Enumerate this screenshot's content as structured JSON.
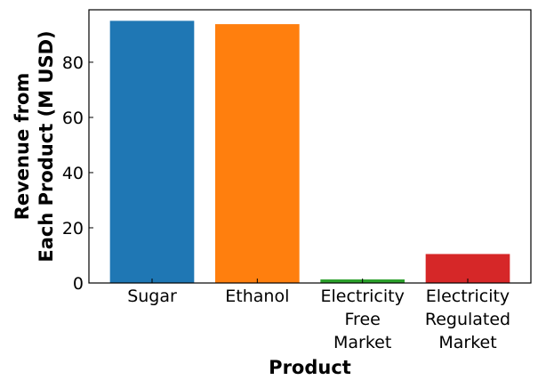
{
  "chart_data": {
    "type": "bar",
    "categories": [
      [
        "Sugar"
      ],
      [
        "Ethanol"
      ],
      [
        "Electricity",
        "Free",
        "Market"
      ],
      [
        "Electricity",
        "Regulated",
        "Market"
      ]
    ],
    "values": [
      95,
      93.8,
      1.3,
      10.5
    ],
    "colors": [
      "#1f77b4",
      "#ff7f0e",
      "#2ca02c",
      "#d62728"
    ],
    "title": "",
    "xlabel": "Product",
    "ylabel": [
      "Revenue from",
      "Each Product (M USD)"
    ],
    "ylim": [
      0,
      99
    ],
    "yticks": [
      0,
      20,
      40,
      60,
      80
    ],
    "grid": false,
    "legend": false
  }
}
